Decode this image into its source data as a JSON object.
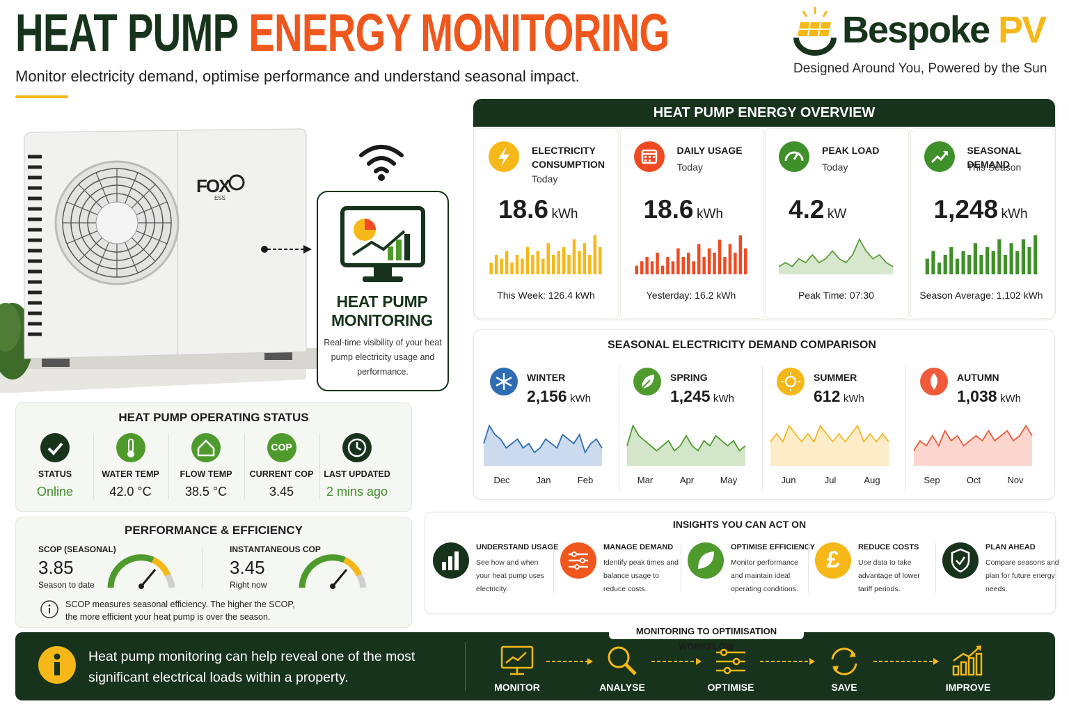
{
  "header": {
    "title_dark": "HEAT PUMP",
    "title_accent": "ENERGY MONITORING",
    "subtitle": "Monitor electricity demand, optimise performance and understand seasonal impact.",
    "brand_name": "Bespoke",
    "brand_accent": "PV",
    "tagline": "Designed Around You, Powered by the Sun"
  },
  "unit": {
    "brand": "FOX",
    "brand_sub": "ESS"
  },
  "monitoring_card": {
    "title": "HEAT PUMP MONITORING",
    "description": "Real-time visibility of your heat pump electricity usage and performance."
  },
  "overview": {
    "title": "HEAT PUMP ENERGY OVERVIEW",
    "cards": [
      {
        "label": "ELECTRICITY CONSUMPTION",
        "sub": "Today",
        "value": "18.6",
        "unit": "kWh",
        "footer": "This Week: 126.4 kWh",
        "kind": "bars",
        "color": "#f6b818",
        "trend": [
          3,
          5,
          4,
          6,
          3,
          5,
          4,
          7,
          5,
          6,
          4,
          8,
          5,
          6,
          7,
          5,
          9,
          6,
          8,
          5,
          10,
          7
        ]
      },
      {
        "label": "DAILY USAGE",
        "sub": "Today",
        "value": "18.6",
        "unit": "kWh",
        "footer": "Yesterday: 16.2 kWh",
        "kind": "bars",
        "color": "#ef4a23",
        "trend": [
          2,
          3,
          4,
          3,
          5,
          2,
          4,
          3,
          6,
          4,
          5,
          3,
          7,
          4,
          6,
          5,
          8,
          4,
          7,
          5,
          9,
          6
        ]
      },
      {
        "label": "PEAK LOAD",
        "sub": "Today",
        "value": "4.2",
        "unit": "kW",
        "footer": "Peak Time: 07:30",
        "kind": "area",
        "color": "#5a9e3a",
        "trend": [
          2,
          3,
          2,
          4,
          3,
          5,
          3,
          4,
          6,
          4,
          3,
          5,
          9,
          6,
          4,
          5,
          3,
          2
        ]
      },
      {
        "label": "SEASONAL DEMAND",
        "sub": "This Season",
        "value": "1,248",
        "unit": "kWh",
        "footer": "Season Average: 1,102 kWh",
        "kind": "bars",
        "color": "#3f8f2a",
        "trend": [
          4,
          6,
          3,
          5,
          7,
          4,
          6,
          5,
          8,
          5,
          7,
          6,
          9,
          5,
          8,
          6,
          9,
          7,
          10
        ]
      }
    ]
  },
  "seasonal": {
    "title": "SEASONAL ELECTRICITY DEMAND COMPARISON",
    "seasons": [
      {
        "name": "WINTER",
        "value": "2,156",
        "unit": "kWh",
        "months": [
          "Dec",
          "Jan",
          "Feb"
        ],
        "color": "#2e6db4",
        "trend": [
          5,
          9,
          7,
          6,
          4,
          5,
          6,
          4,
          5,
          3,
          4,
          6,
          5,
          4,
          7,
          6,
          5,
          7,
          3,
          5,
          6,
          4
        ]
      },
      {
        "name": "SPRING",
        "value": "1,245",
        "unit": "kWh",
        "months": [
          "Mar",
          "Apr",
          "May"
        ],
        "color": "#4f9a2c",
        "trend": [
          4,
          8,
          6,
          5,
          4,
          3,
          4,
          5,
          3,
          4,
          6,
          4,
          3,
          5,
          4,
          6,
          5,
          4,
          5,
          3,
          4
        ]
      },
      {
        "name": "SUMMER",
        "value": "612",
        "unit": "kWh",
        "months": [
          "Jun",
          "Jul",
          "Aug"
        ],
        "color": "#f2b824",
        "trend": [
          3,
          4,
          3,
          5,
          4,
          3,
          4,
          3,
          5,
          4,
          3,
          4,
          3,
          4,
          5,
          3,
          4,
          3,
          4,
          3
        ]
      },
      {
        "name": "AUTUMN",
        "value": "1,038",
        "unit": "kWh",
        "months": [
          "Sep",
          "Oct",
          "Nov"
        ],
        "color": "#ee5a3a",
        "trend": [
          3,
          5,
          4,
          6,
          4,
          7,
          5,
          6,
          4,
          5,
          6,
          5,
          7,
          5,
          6,
          7,
          5,
          6,
          8,
          6
        ]
      }
    ]
  },
  "status": {
    "title": "HEAT PUMP OPERATING STATUS",
    "items": [
      {
        "label": "STATUS",
        "value": "Online"
      },
      {
        "label": "WATER TEMP",
        "value": "42.0 °C"
      },
      {
        "label": "FLOW TEMP",
        "value": "38.5 °C"
      },
      {
        "label": "CURRENT COP",
        "value": "3.45",
        "icon_text": "COP"
      },
      {
        "label": "LAST UPDATED",
        "value": "2 mins ago"
      }
    ]
  },
  "performance": {
    "title": "PERFORMANCE & EFFICIENCY",
    "metrics": [
      {
        "label": "SCOP (SEASONAL)",
        "value": "3.85",
        "sub": "Season to date"
      },
      {
        "label": "INSTANTANEOUS COP",
        "value": "3.45",
        "sub": "Right now"
      }
    ],
    "note": "SCOP measures seasonal efficiency. The higher the SCOP, the more efficient your heat pump is over the season."
  },
  "insights": {
    "title": "INSIGHTS YOU CAN ACT ON",
    "items": [
      {
        "title": "UNDERSTAND USAGE",
        "text": "See how and when your heat pump uses electricity."
      },
      {
        "title": "MANAGE DEMAND",
        "text": "Identify peak times and balance usage to reduce costs."
      },
      {
        "title": "OPTIMISE EFFICIENCY",
        "text": "Monitor performance and maintain ideal operating conditions."
      },
      {
        "title": "REDUCE COSTS",
        "text": "Use data to take advantage of lower tariff periods.",
        "icon_text": "£"
      },
      {
        "title": "PLAN AHEAD",
        "text": "Compare seasons and plan for future energy needs."
      }
    ]
  },
  "footer": {
    "message": "Heat pump monitoring can help reveal one of the most significant electrical loads within a property.",
    "workflow_title": "MONITORING TO OPTIMISATION WORKFLOW",
    "steps": [
      "MONITOR",
      "ANALYSE",
      "OPTIMISE",
      "SAVE",
      "IMPROVE"
    ]
  }
}
